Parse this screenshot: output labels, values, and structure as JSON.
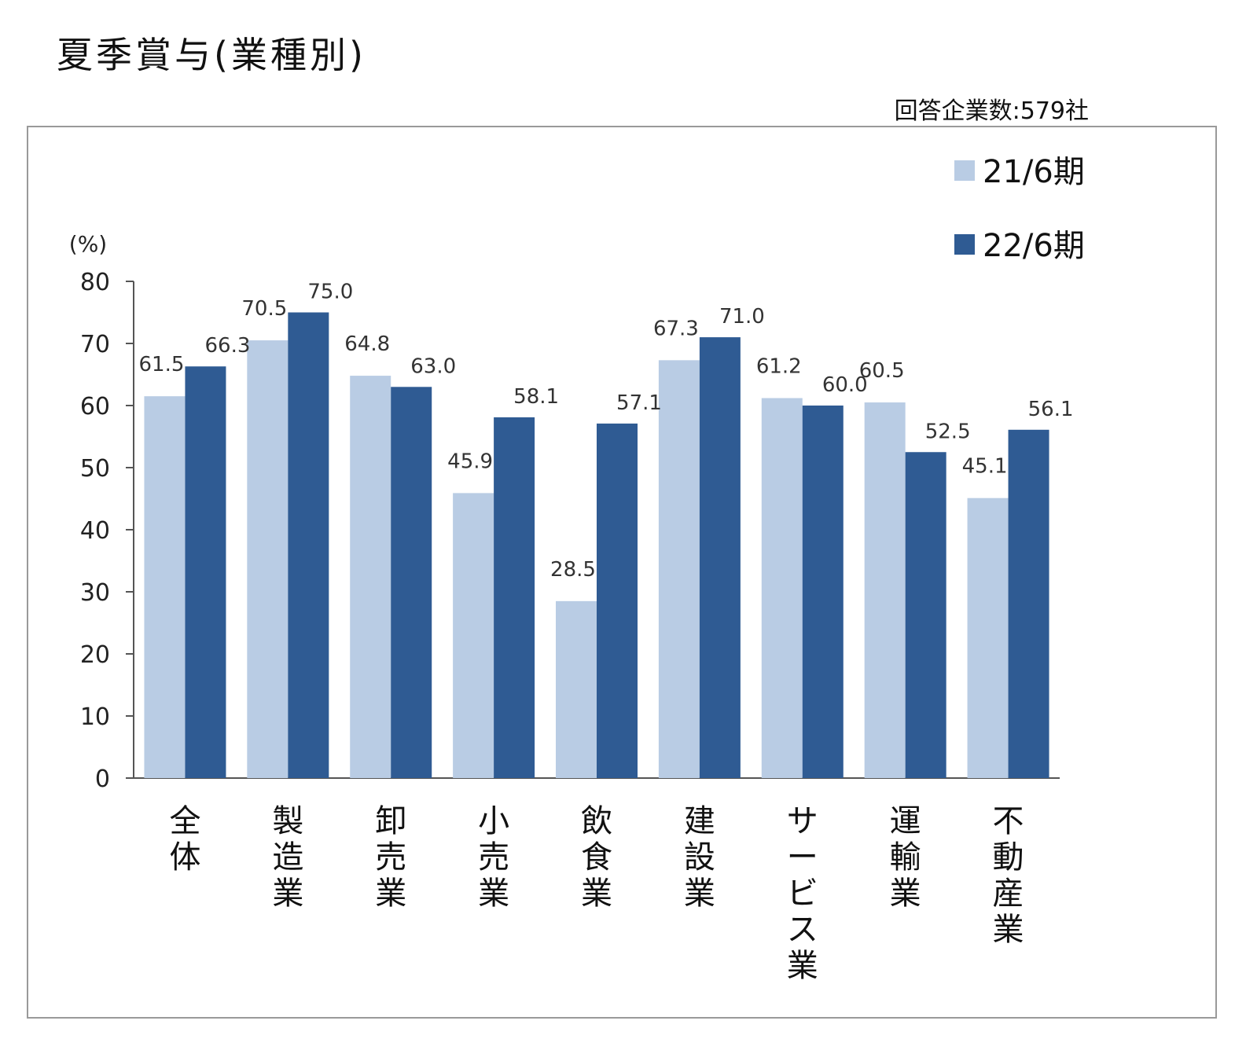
{
  "title": "夏季賞与(業種別)",
  "respondents": "回答企業数:579社",
  "chart_data": {
    "type": "bar",
    "title": "夏季賞与(業種別)",
    "ylabel": "(%)",
    "xlabel": "",
    "ylim": [
      0,
      80
    ],
    "yticks": [
      "0",
      "10",
      "20",
      "30",
      "40",
      "50",
      "60",
      "70",
      "80"
    ],
    "categories": [
      "全体",
      "製造業",
      "卸売業",
      "小売業",
      "飲食業",
      "建設業",
      "サービス業",
      "運輸業",
      "不動産業"
    ],
    "series": [
      {
        "name": "21/6期",
        "color": "#b9cce4",
        "values": [
          61.5,
          70.5,
          64.8,
          45.9,
          28.5,
          67.3,
          61.2,
          60.5,
          45.1
        ],
        "labels": [
          "61.5",
          "70.5",
          "64.8",
          "45.9",
          "28.5",
          "67.3",
          "61.2",
          "60.5",
          "45.1"
        ]
      },
      {
        "name": "22/6期",
        "color": "#2f5b93",
        "values": [
          66.3,
          75.0,
          63.0,
          58.1,
          57.1,
          71.0,
          60.0,
          52.5,
          56.1
        ],
        "labels": [
          "66.3",
          "75.0",
          "63.0",
          "58.1",
          "57.1",
          "71.0",
          "60.0",
          "52.5",
          "56.1"
        ]
      }
    ],
    "legend": "top-right",
    "grid": false
  }
}
